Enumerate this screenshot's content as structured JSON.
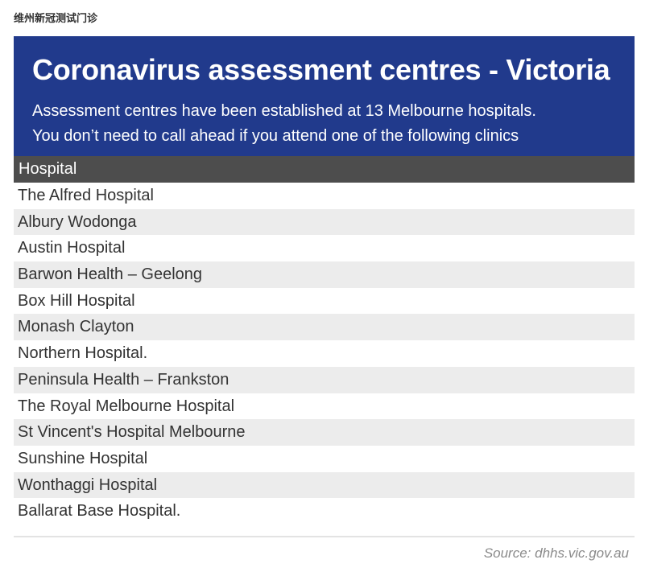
{
  "caption": "维州新冠测试门诊",
  "banner": {
    "title": "Coronavirus assessment centres - Victoria",
    "subtitle_line1": "Assessment centres have been established at 13 Melbourne hospitals.",
    "subtitle_line2": "You don’t need to call ahead if you attend one of the following clinics",
    "background_color": "#213a8c"
  },
  "table": {
    "header": "Hospital",
    "header_color": "#4d4d4d",
    "rows": [
      "The Alfred Hospital",
      "Albury Wodonga",
      "Austin Hospital",
      "Barwon Health – Geelong",
      "Box Hill Hospital",
      "Monash Clayton",
      "Northern Hospital.",
      "Peninsula Health – Frankston",
      "The Royal Melbourne Hospital",
      "St Vincent's Hospital Melbourne",
      "Sunshine Hospital",
      "Wonthaggi Hospital",
      "Ballarat Base Hospital."
    ]
  },
  "source": "Source: dhhs.vic.gov.au"
}
